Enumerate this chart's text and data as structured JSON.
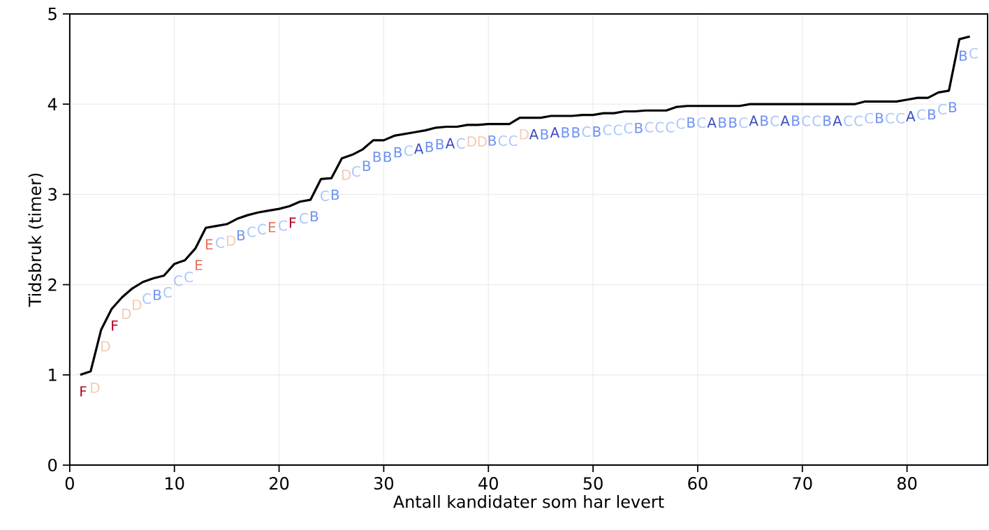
{
  "chart_data": {
    "type": "line",
    "xlabel": "Antall kandidater som har levert",
    "ylabel": "Tidsbruk (timer)",
    "x": [
      1,
      2,
      3,
      4,
      5,
      6,
      7,
      8,
      9,
      10,
      11,
      12,
      13,
      14,
      15,
      16,
      17,
      18,
      19,
      20,
      21,
      22,
      23,
      24,
      25,
      26,
      27,
      28,
      29,
      30,
      31,
      32,
      33,
      34,
      35,
      36,
      37,
      38,
      39,
      40,
      41,
      42,
      43,
      44,
      45,
      46,
      47,
      48,
      49,
      50,
      51,
      52,
      53,
      54,
      55,
      56,
      57,
      58,
      59,
      60,
      61,
      62,
      63,
      64,
      65,
      66,
      67,
      68,
      69,
      70,
      71,
      72,
      73,
      74,
      75,
      76,
      77,
      78,
      79,
      80,
      81,
      82,
      83,
      84,
      85,
      86
    ],
    "series": [
      {
        "color": "#000000",
        "values": [
          1.0,
          1.04,
          1.5,
          1.73,
          1.86,
          1.96,
          2.03,
          2.07,
          2.1,
          2.23,
          2.27,
          2.4,
          2.63,
          2.65,
          2.67,
          2.73,
          2.77,
          2.8,
          2.82,
          2.84,
          2.87,
          2.92,
          2.94,
          3.17,
          3.18,
          3.4,
          3.44,
          3.5,
          3.6,
          3.6,
          3.65,
          3.67,
          3.69,
          3.71,
          3.74,
          3.75,
          3.75,
          3.77,
          3.77,
          3.78,
          3.78,
          3.78,
          3.85,
          3.85,
          3.85,
          3.87,
          3.87,
          3.87,
          3.88,
          3.88,
          3.9,
          3.9,
          3.92,
          3.92,
          3.93,
          3.93,
          3.93,
          3.97,
          3.98,
          3.98,
          3.98,
          3.98,
          3.98,
          3.98,
          4.0,
          4.0,
          4.0,
          4.0,
          4.0,
          4.0,
          4.0,
          4.0,
          4.0,
          4.0,
          4.0,
          4.03,
          4.03,
          4.03,
          4.03,
          4.05,
          4.07,
          4.07,
          4.13,
          4.15,
          4.72,
          4.75
        ],
        "value_labels": [
          "F",
          "D",
          "D",
          "F",
          "D",
          "D",
          "C",
          "B",
          "C",
          "C",
          "C",
          "E",
          "E",
          "C",
          "D",
          "B",
          "C",
          "C",
          "E",
          "C",
          "F",
          "C",
          "B",
          "C",
          "B",
          "D",
          "C",
          "B",
          "B",
          "B",
          "B",
          "C",
          "A",
          "B",
          "B",
          "A",
          "C",
          "D",
          "D",
          "B",
          "C",
          "C",
          "D",
          "A",
          "B",
          "A",
          "B",
          "B",
          "C",
          "B",
          "C",
          "C",
          "C",
          "B",
          "C",
          "C",
          "C",
          "C",
          "B",
          "C",
          "A",
          "B",
          "B",
          "C",
          "A",
          "B",
          "C",
          "A",
          "B",
          "C",
          "C",
          "B",
          "A",
          "C",
          "C",
          "C",
          "B",
          "C",
          "C",
          "A",
          "C",
          "B",
          "C",
          "B",
          "B",
          "C"
        ],
        "colors": [
          "#b40426",
          "#f2cbb7",
          "#f2cbb7",
          "#b40426",
          "#f2cbb7",
          "#f2cbb7",
          "#aac7fd",
          "#6f92f3",
          "#aac7fd",
          "#aac7fd",
          "#aac7fd",
          "#e7745b",
          "#e7745b",
          "#aac7fd",
          "#f2cbb7",
          "#6f92f3",
          "#aac7fd",
          "#aac7fd",
          "#e7745b",
          "#aac7fd",
          "#b40426",
          "#aac7fd",
          "#6f92f3",
          "#aac7fd",
          "#6f92f3",
          "#f2cbb7",
          "#aac7fd",
          "#6f92f3",
          "#6f92f3",
          "#6f92f3",
          "#6f92f3",
          "#aac7fd",
          "#3b4cc0",
          "#6f92f3",
          "#6f92f3",
          "#3b4cc0",
          "#aac7fd",
          "#f2cbb7",
          "#f2cbb7",
          "#6f92f3",
          "#aac7fd",
          "#aac7fd",
          "#f2cbb7",
          "#3b4cc0",
          "#6f92f3",
          "#3b4cc0",
          "#6f92f3",
          "#6f92f3",
          "#aac7fd",
          "#6f92f3",
          "#aac7fd",
          "#aac7fd",
          "#aac7fd",
          "#6f92f3",
          "#aac7fd",
          "#aac7fd",
          "#aac7fd",
          "#aac7fd",
          "#6f92f3",
          "#aac7fd",
          "#3b4cc0",
          "#6f92f3",
          "#6f92f3",
          "#aac7fd",
          "#3b4cc0",
          "#6f92f3",
          "#aac7fd",
          "#3b4cc0",
          "#6f92f3",
          "#aac7fd",
          "#aac7fd",
          "#6f92f3",
          "#3b4cc0",
          "#aac7fd",
          "#aac7fd",
          "#aac7fd",
          "#6f92f3",
          "#aac7fd",
          "#aac7fd",
          "#3b4cc0",
          "#aac7fd",
          "#6f92f3",
          "#aac7fd",
          "#6f92f3",
          "#6f92f3",
          "#aac7fd"
        ]
      }
    ],
    "xlim": [
      0,
      87.7
    ],
    "ylim": [
      0,
      5
    ],
    "xticks": [
      0,
      10,
      20,
      30,
      40,
      50,
      60,
      70,
      80
    ],
    "yticks": [
      0,
      1,
      2,
      3,
      4,
      5
    ],
    "grid": true,
    "marker": "none",
    "line_style": "solid"
  }
}
